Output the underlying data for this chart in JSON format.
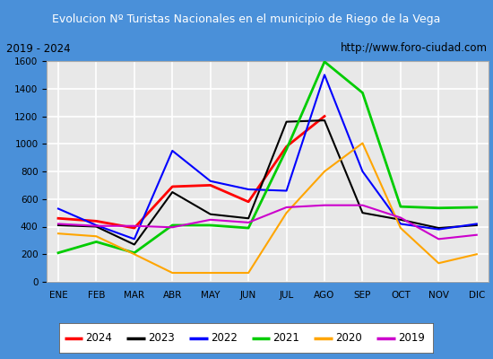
{
  "title": "Evolucion Nº Turistas Nacionales en el municipio de Riego de la Vega",
  "subtitle_left": "2019 - 2024",
  "subtitle_right": "http://www.foro-ciudad.com",
  "months": [
    "ENE",
    "FEB",
    "MAR",
    "ABR",
    "MAY",
    "JUN",
    "JUL",
    "AGO",
    "SEP",
    "OCT",
    "NOV",
    "DIC"
  ],
  "series": {
    "2024": [
      460,
      440,
      390,
      690,
      700,
      580,
      980,
      1200,
      null,
      null,
      null,
      null
    ],
    "2023": [
      410,
      400,
      270,
      650,
      490,
      460,
      1160,
      1170,
      500,
      450,
      390,
      410
    ],
    "2022": [
      530,
      410,
      310,
      950,
      730,
      670,
      660,
      1500,
      800,
      420,
      380,
      420
    ],
    "2021": [
      210,
      290,
      210,
      410,
      410,
      390,
      960,
      1595,
      1370,
      545,
      535,
      540
    ],
    "2020": [
      350,
      330,
      200,
      65,
      65,
      65,
      500,
      800,
      1005,
      390,
      135,
      200
    ],
    "2019": [
      420,
      405,
      405,
      395,
      450,
      430,
      540,
      555,
      555,
      465,
      310,
      340
    ]
  },
  "colors": {
    "2024": "#ff0000",
    "2023": "#000000",
    "2022": "#0000ff",
    "2021": "#00cc00",
    "2020": "#ffa500",
    "2019": "#cc00cc"
  },
  "ylim": [
    0,
    1600
  ],
  "yticks": [
    0,
    200,
    400,
    600,
    800,
    1000,
    1200,
    1400,
    1600
  ],
  "title_bg_color": "#4a90d9",
  "title_text_color": "#ffffff",
  "subtitle_bg_color": "#e8e8e8",
  "plot_bg_color": "#e8e8e8",
  "grid_color": "#ffffff",
  "legend_border_color": "#666666"
}
